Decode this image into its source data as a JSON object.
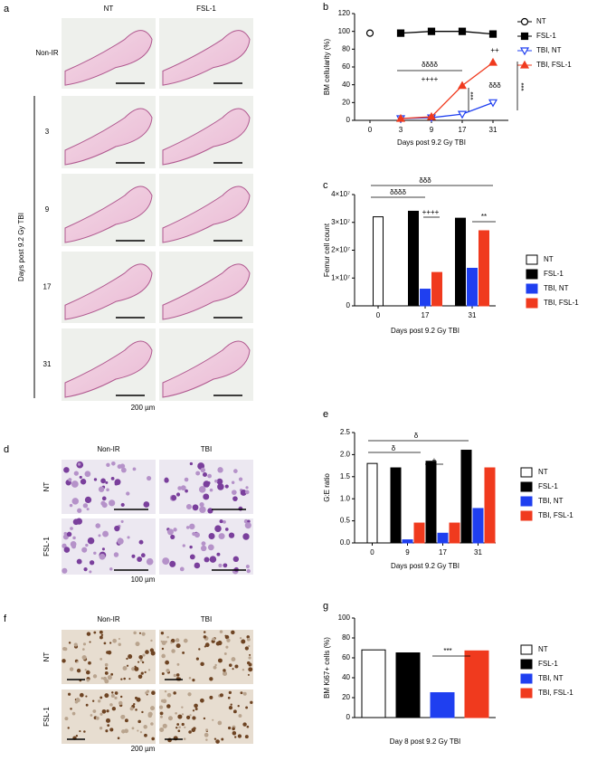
{
  "panels": {
    "a": {
      "letter": "a",
      "columns": [
        "NT",
        "FSL-1"
      ],
      "rows": [
        "Non-IR",
        "3",
        "9",
        "17",
        "31"
      ],
      "axis_label": "Days post 9.2 Gy TBI",
      "scale_bar": "200 µm"
    },
    "d": {
      "letter": "d",
      "columns": [
        "Non-IR",
        "TBI"
      ],
      "rows": [
        "NT",
        "FSL-1"
      ],
      "scale_bar": "100 µm"
    },
    "f": {
      "letter": "f",
      "columns": [
        "Non-IR",
        "TBI"
      ],
      "rows": [
        "NT",
        "FSL-1"
      ],
      "scale_bar": "200 µm"
    }
  },
  "chart_data": [
    {
      "type": "line",
      "panel_label": "b",
      "y_label": "BM cellularity (%)",
      "x_label": "Days post 9.2 Gy TBI",
      "categories": [
        "0",
        "3",
        "9",
        "17",
        "31"
      ],
      "series": [
        {
          "name": "NT",
          "color": "#000000",
          "marker": "circle-open",
          "values": [
            98,
            null,
            null,
            null,
            null
          ]
        },
        {
          "name": "FSL-1",
          "color": "#000000",
          "marker": "square",
          "values": [
            null,
            98,
            100,
            100,
            97
          ]
        },
        {
          "name": "TBI, NT",
          "color": "#1f3ff0",
          "marker": "triangle-down-open",
          "values": [
            null,
            2,
            3,
            7,
            20
          ]
        },
        {
          "name": "TBI, FSL-1",
          "color": "#f03a1e",
          "marker": "triangle",
          "values": [
            null,
            2,
            4,
            39,
            65
          ]
        }
      ],
      "ylim": [
        0,
        120
      ],
      "yticks": [
        0,
        20,
        40,
        60,
        80,
        100,
        120
      ],
      "annotations": [
        "δδδδ",
        "++++",
        "++",
        "δδδ",
        "***",
        "***"
      ]
    },
    {
      "type": "bar",
      "panel_label": "c",
      "y_label": "Femur cell count",
      "x_label": "Days post 9.2 Gy TBI",
      "categories": [
        "0",
        "17",
        "31"
      ],
      "series": [
        {
          "name": "NT",
          "color": "#ffffff",
          "values": [
            32000000,
            null,
            null
          ]
        },
        {
          "name": "FSL-1",
          "color": "#000000",
          "values": [
            null,
            34000000,
            31500000
          ]
        },
        {
          "name": "TBI, NT",
          "color": "#1f3ff0",
          "values": [
            null,
            6000000,
            13500000
          ]
        },
        {
          "name": "TBI, FSL-1",
          "color": "#f03a1e",
          "values": [
            null,
            12000000,
            27000000
          ]
        }
      ],
      "ylim": [
        0,
        40000000
      ],
      "yticks": [
        0,
        {
          "value": 10000000,
          "label": "1×10⁷"
        },
        {
          "value": 20000000,
          "label": "2×10⁷"
        },
        {
          "value": 30000000,
          "label": "3×10⁷"
        },
        {
          "value": 40000000,
          "label": "4×10⁷"
        }
      ],
      "annotations": [
        "δδδ",
        "δδδδ",
        "++++",
        "**"
      ]
    },
    {
      "type": "bar",
      "panel_label": "e",
      "y_label": "G:E ratio",
      "x_label": "Days post 9.2 Gy TBI",
      "categories": [
        "0",
        "9",
        "17",
        "31"
      ],
      "series": [
        {
          "name": "NT",
          "color": "#ffffff",
          "values": [
            1.8,
            null,
            null,
            null
          ]
        },
        {
          "name": "FSL-1",
          "color": "#000000",
          "values": [
            null,
            1.7,
            1.85,
            2.1
          ]
        },
        {
          "name": "TBI, NT",
          "color": "#1f3ff0",
          "values": [
            null,
            0.07,
            0.22,
            0.78
          ]
        },
        {
          "name": "TBI, FSL-1",
          "color": "#f03a1e",
          "values": [
            null,
            0.45,
            0.45,
            1.7
          ]
        }
      ],
      "ylim": [
        0,
        2.5
      ],
      "yticks": [
        {
          "value": 0,
          "label": "0.0"
        },
        {
          "value": 0.5,
          "label": "0.5"
        },
        {
          "value": 1,
          "label": "1.0"
        },
        {
          "value": 1.5,
          "label": "1.5"
        },
        {
          "value": 2,
          "label": "2.0"
        },
        {
          "value": 2.5,
          "label": "2.5"
        }
      ],
      "annotations": [
        "δ",
        "δ",
        "+"
      ]
    },
    {
      "type": "bar",
      "panel_label": "g",
      "y_label": "BM Ki67+ cells (%)",
      "x_label": "Day 8 post 9.2 Gy TBI",
      "series": [
        {
          "name": "NT",
          "color": "#ffffff",
          "values": [
            68
          ]
        },
        {
          "name": "FSL-1",
          "color": "#000000",
          "values": [
            65
          ]
        },
        {
          "name": "TBI, NT",
          "color": "#1f3ff0",
          "values": [
            25
          ]
        },
        {
          "name": "TBI, FSL-1",
          "color": "#f03a1e",
          "values": [
            67
          ]
        }
      ],
      "ylim": [
        0,
        100
      ],
      "yticks": [
        0,
        20,
        40,
        60,
        80,
        100
      ],
      "annotations": [
        "***"
      ]
    }
  ]
}
